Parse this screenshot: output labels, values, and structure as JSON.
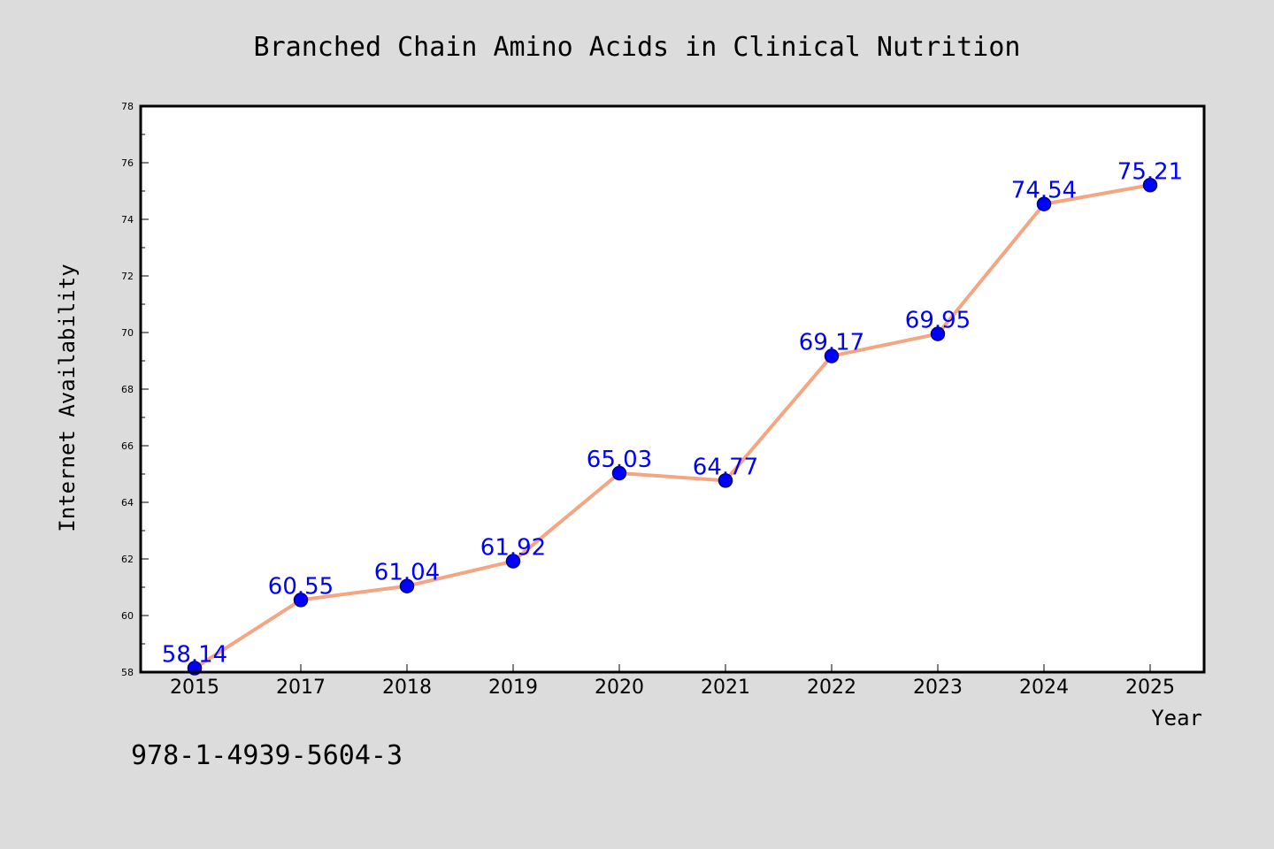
{
  "chart_data": {
    "type": "line",
    "title": "Branched Chain Amino Acids in Clinical Nutrition",
    "xlabel": "Year",
    "ylabel": "Internet Availability",
    "categories": [
      "2015",
      "2017",
      "2018",
      "2019",
      "2020",
      "2021",
      "2022",
      "2023",
      "2024",
      "2025"
    ],
    "series": [
      {
        "values": [
          58.14,
          60.55,
          61.04,
          61.92,
          65.03,
          64.77,
          69.17,
          69.95,
          74.54,
          75.21
        ],
        "labels": [
          "58.14",
          "60.55",
          "61.04",
          "61.92",
          "65.03",
          "64.77",
          "69.17",
          "69.95",
          "74.54",
          "75.21"
        ]
      }
    ],
    "ylim": [
      58,
      78
    ],
    "yticks": [
      "58",
      "60",
      "62",
      "64",
      "66",
      "68",
      "70",
      "72",
      "74",
      "76",
      "78"
    ],
    "grid": false,
    "legend": "none",
    "colors": {
      "line": "#f4a582",
      "marker": "#0000ff",
      "marker_edge": "#000080",
      "label": "#0000ff",
      "background": "#dcdcdc",
      "plot_area": "#ffffff"
    }
  },
  "footnote": "978-1-4939-5604-3"
}
